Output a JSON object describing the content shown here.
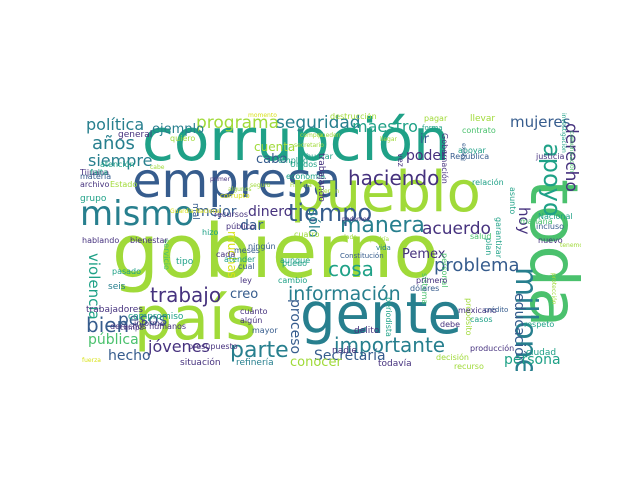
{
  "palette": {
    "lime": "#a0da39",
    "green": "#4ac16d",
    "teal": "#1fa187",
    "cyan": "#277f8e",
    "blue": "#365c8d",
    "indigo": "#46327e",
    "purple": "#440154",
    "yellow": "#d8e219"
  },
  "words": [
    {
      "text": "corrupción",
      "color": "teal"
    },
    {
      "text": "gobierno",
      "color": "lime"
    },
    {
      "text": "gente",
      "color": "cyan"
    },
    {
      "text": "país",
      "color": "lime"
    },
    {
      "text": "empresa",
      "color": "blue"
    },
    {
      "text": "pueblo",
      "color": "lime"
    },
    {
      "text": "toda",
      "color": "green"
    },
    {
      "text": "mismo",
      "color": "cyan"
    },
    {
      "text": "información",
      "color": "cyan"
    },
    {
      "text": "importante",
      "color": "cyan"
    },
    {
      "text": "millones",
      "color": "cyan"
    },
    {
      "text": "tiempo",
      "color": "blue"
    },
    {
      "text": "manera",
      "color": "cyan"
    },
    {
      "text": "haciendo",
      "color": "indigo"
    },
    {
      "text": "parte",
      "color": "cyan"
    },
    {
      "text": "apoyo",
      "color": "teal"
    },
    {
      "text": "trabajo",
      "color": "indigo"
    },
    {
      "text": "problema",
      "color": "blue"
    },
    {
      "text": "política",
      "color": "cyan"
    },
    {
      "text": "programa",
      "color": "lime"
    },
    {
      "text": "seguridad",
      "color": "cyan"
    },
    {
      "text": "maestro",
      "color": "teal"
    },
    {
      "text": "mujeres",
      "color": "blue"
    },
    {
      "text": "años",
      "color": "cyan"
    },
    {
      "text": "siempre",
      "color": "cyan"
    },
    {
      "text": "bien",
      "color": "blue"
    },
    {
      "text": "pesos",
      "color": "blue"
    },
    {
      "text": "jóvenes",
      "color": "indigo"
    },
    {
      "text": "hecho",
      "color": "blue"
    },
    {
      "text": "cosa",
      "color": "teal"
    },
    {
      "text": "acuerdo",
      "color": "indigo"
    },
    {
      "text": "derecho",
      "color": "indigo"
    },
    {
      "text": "hoy",
      "color": "indigo"
    },
    {
      "text": "educación",
      "color": "blue"
    },
    {
      "text": "persona",
      "color": "teal"
    },
    {
      "text": "Secretaría",
      "color": "blue"
    },
    {
      "text": "proceso",
      "color": "blue"
    },
    {
      "text": "conocer",
      "color": "lime"
    },
    {
      "text": "violencia",
      "color": "teal"
    },
    {
      "text": "pública",
      "color": "green"
    },
    {
      "text": "ejemplo",
      "color": "cyan"
    },
    {
      "text": "mejor",
      "color": "blue"
    },
    {
      "text": "dinero",
      "color": "indigo"
    },
    {
      "text": "dar",
      "color": "blue"
    },
    {
      "text": "sólo",
      "color": "cyan"
    },
    {
      "text": "creo",
      "color": "blue"
    },
    {
      "text": "poder",
      "color": "indigo"
    },
    {
      "text": "ir",
      "color": "blue"
    },
    {
      "text": "Pemex",
      "color": "indigo"
    },
    {
      "text": "cabo",
      "color": "blue"
    },
    {
      "text": "muchas",
      "color": "yellow"
    },
    {
      "text": "cuenta",
      "color": "lime"
    },
    {
      "text": "general",
      "color": "indigo"
    },
    {
      "text": "quiero",
      "color": "lime"
    },
    {
      "text": "empleo",
      "color": "teal"
    },
    {
      "text": "momento",
      "color": "yellow"
    },
    {
      "text": "forma",
      "color": "teal"
    },
    {
      "text": "llevar",
      "color": "lime"
    },
    {
      "text": "pagar",
      "color": "lime"
    },
    {
      "text": "contrato",
      "color": "green"
    },
    {
      "text": "garantizar",
      "color": "teal"
    },
    {
      "text": "comunicación",
      "color": "green"
    },
    {
      "text": "investigación",
      "color": "teal"
    },
    {
      "text": "vida",
      "color": "cyan"
    },
    {
      "text": "podemos",
      "color": "indigo"
    },
    {
      "text": "servicio",
      "color": "green"
    },
    {
      "text": "tipo",
      "color": "teal"
    },
    {
      "text": "seis",
      "color": "cyan"
    },
    {
      "text": "pasado",
      "color": "teal"
    },
    {
      "text": "trabajadores",
      "color": "indigo"
    },
    {
      "text": "presupuesto",
      "color": "indigo"
    },
    {
      "text": "situación",
      "color": "indigo"
    },
    {
      "text": "refinería",
      "color": "cyan"
    },
    {
      "text": "todavía",
      "color": "indigo"
    },
    {
      "text": "nadie",
      "color": "indigo"
    },
    {
      "text": "delito",
      "color": "indigo"
    },
    {
      "text": "debe",
      "color": "indigo"
    },
    {
      "text": "casos",
      "color": "teal"
    },
    {
      "text": "respeto",
      "color": "teal"
    },
    {
      "text": "ciudad",
      "color": "teal"
    },
    {
      "text": "producción",
      "color": "indigo"
    },
    {
      "text": "justicia",
      "color": "indigo"
    },
    {
      "text": "relación",
      "color": "teal"
    },
    {
      "text": "nuevo",
      "color": "indigo"
    },
    {
      "text": "incluso",
      "color": "blue"
    },
    {
      "text": "mayor",
      "color": "blue"
    },
    {
      "text": "cambio",
      "color": "teal"
    },
    {
      "text": "ley",
      "color": "indigo"
    },
    {
      "text": "puedo",
      "color": "teal"
    },
    {
      "text": "hablando",
      "color": "indigo"
    },
    {
      "text": "bienestar",
      "color": "indigo"
    },
    {
      "text": "compromiso",
      "color": "teal"
    },
    {
      "text": "salud",
      "color": "green"
    },
    {
      "text": "personal",
      "color": "green"
    },
    {
      "text": "sistema",
      "color": "green"
    },
    {
      "text": "propósito",
      "color": "lime"
    },
    {
      "text": "plan",
      "color": "teal"
    },
    {
      "text": "mexicano",
      "color": "indigo"
    },
    {
      "text": "crédito",
      "color": "blue"
    },
    {
      "text": "Nacional",
      "color": "teal"
    },
    {
      "text": "mañana",
      "color": "green"
    },
    {
      "text": "asunto",
      "color": "teal"
    },
    {
      "text": "Tijuana",
      "color": "indigo"
    },
    {
      "text": "archivo",
      "color": "indigo"
    },
    {
      "text": "grupo",
      "color": "teal"
    },
    {
      "text": "falta",
      "color": "teal"
    },
    {
      "text": "atención",
      "color": "teal"
    },
    {
      "text": "materia",
      "color": "blue"
    },
    {
      "text": "Unidos",
      "color": "teal"
    },
    {
      "text": "economía",
      "color": "teal"
    },
    {
      "text": "buscar",
      "color": "teal"
    },
    {
      "text": "recursos",
      "color": "indigo"
    },
    {
      "text": "público",
      "color": "indigo"
    },
    {
      "text": "hizo",
      "color": "teal"
    },
    {
      "text": "cada",
      "color": "indigo"
    },
    {
      "text": "cual",
      "color": "blue"
    },
    {
      "text": "cuánto",
      "color": "indigo"
    },
    {
      "text": "algún",
      "color": "indigo"
    },
    {
      "text": "meses",
      "color": "blue"
    },
    {
      "text": "aunque",
      "color": "teal"
    },
    {
      "text": "atender",
      "color": "teal"
    },
    {
      "text": "ningún",
      "color": "blue"
    },
    {
      "text": "primero",
      "color": "indigo"
    },
    {
      "text": "dólares",
      "color": "blue"
    },
    {
      "text": "Constitución",
      "color": "blue"
    },
    {
      "text": "periodista",
      "color": "teal"
    },
    {
      "text": "trabajando",
      "color": "indigo"
    },
    {
      "text": "vez",
      "color": "indigo"
    },
    {
      "text": "República",
      "color": "blue"
    },
    {
      "text": "Gobernación",
      "color": "indigo"
    },
    {
      "text": "apoyar",
      "color": "teal"
    },
    {
      "text": "cuatro",
      "color": "lime"
    },
    {
      "text": "informe",
      "color": "indigo"
    },
    {
      "text": "derechos humanos",
      "color": "indigo"
    },
    {
      "text": "campo",
      "color": "indigo"
    },
    {
      "text": "mal",
      "color": "blue"
    },
    {
      "text": "Guardia Nacional",
      "color": "yellow"
    },
    {
      "text": "corrupto",
      "color": "yellow"
    },
    {
      "text": "fuerza",
      "color": "yellow"
    },
    {
      "text": "existe",
      "color": "blue"
    },
    {
      "text": "decisión",
      "color": "lime"
    },
    {
      "text": "recurso",
      "color": "lime"
    },
    {
      "text": "destrucción",
      "color": "lime"
    },
    {
      "text": "Estado",
      "color": "lime"
    },
    {
      "text": "compra",
      "color": "lime"
    },
    {
      "text": "secretario",
      "color": "lime"
    },
    {
      "text": "pueden",
      "color": "lime"
    },
    {
      "text": "algunos",
      "color": "lime"
    },
    {
      "text": "seguro",
      "color": "lime"
    },
    {
      "text": "Fiscalía",
      "color": "lime"
    },
    {
      "text": "tienen",
      "color": "lime"
    },
    {
      "text": "podría",
      "color": "lime"
    },
    {
      "text": "dado",
      "color": "lime"
    },
    {
      "text": "cabe",
      "color": "lime"
    },
    {
      "text": "protección",
      "color": "lime"
    },
    {
      "text": "tenemos",
      "color": "lime"
    },
    {
      "text": "primer",
      "color": "indigo"
    },
    {
      "text": "llegar",
      "color": "lime"
    }
  ]
}
